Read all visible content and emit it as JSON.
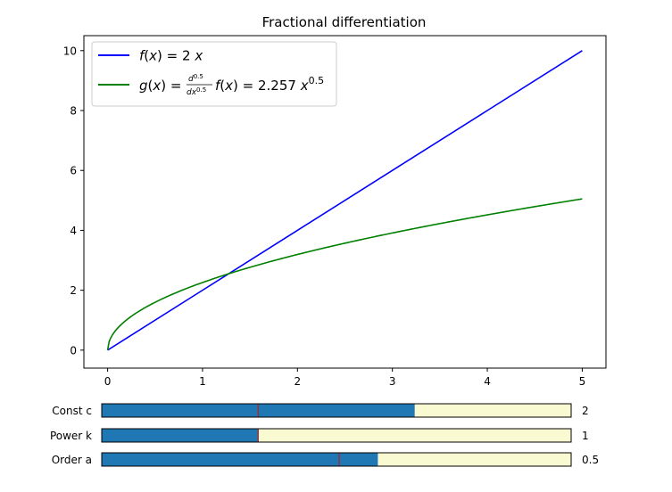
{
  "chart_data": {
    "type": "line",
    "title": "Fractional differentiation",
    "xlabel": "",
    "ylabel": "",
    "xlim": [
      -0.25,
      5.25
    ],
    "ylim": [
      -0.6,
      10.5
    ],
    "x_ticks": [
      "0",
      "1",
      "2",
      "3",
      "4",
      "5"
    ],
    "y_ticks": [
      "0",
      "2",
      "4",
      "6",
      "8",
      "10"
    ],
    "grid": false,
    "legend_position": "top-left",
    "series": [
      {
        "name": "f(x) = 2 x",
        "color": "#0000ff",
        "function": "2*x",
        "x": [
          0,
          1,
          2,
          3,
          4,
          5
        ],
        "y": [
          0,
          2,
          4,
          6,
          8,
          10
        ]
      },
      {
        "name": "g(x) = d^0.5/dx^0.5 f(x) = 2.257 x^0.5",
        "color": "#008000",
        "function": "2.257*x^0.5",
        "x": [
          0,
          0.25,
          0.5,
          1,
          1.5,
          2,
          2.5,
          3,
          3.5,
          4,
          4.5,
          5
        ],
        "y": [
          0,
          1.13,
          1.6,
          2.26,
          2.76,
          3.19,
          3.57,
          3.91,
          4.22,
          4.51,
          4.79,
          5.05
        ]
      }
    ],
    "sliders": [
      {
        "label": "Const c",
        "value": 2,
        "value_text": "2",
        "min": 0,
        "max": 3,
        "initial": 1,
        "color": "#1f77b4",
        "track_color": "#fafad2",
        "marker_color": "#b22222"
      },
      {
        "label": "Power k",
        "value": 1,
        "value_text": "1",
        "min": 0,
        "max": 3,
        "initial": 1,
        "color": "#1f77b4",
        "track_color": "#fafad2",
        "marker_color": "#b22222"
      },
      {
        "label": "Order a",
        "value": 0.5,
        "value_text": "0.5",
        "min": 0,
        "max": 0.85,
        "initial": 0.43,
        "color": "#1f77b4",
        "track_color": "#fafad2",
        "marker_color": "#b22222"
      }
    ]
  }
}
